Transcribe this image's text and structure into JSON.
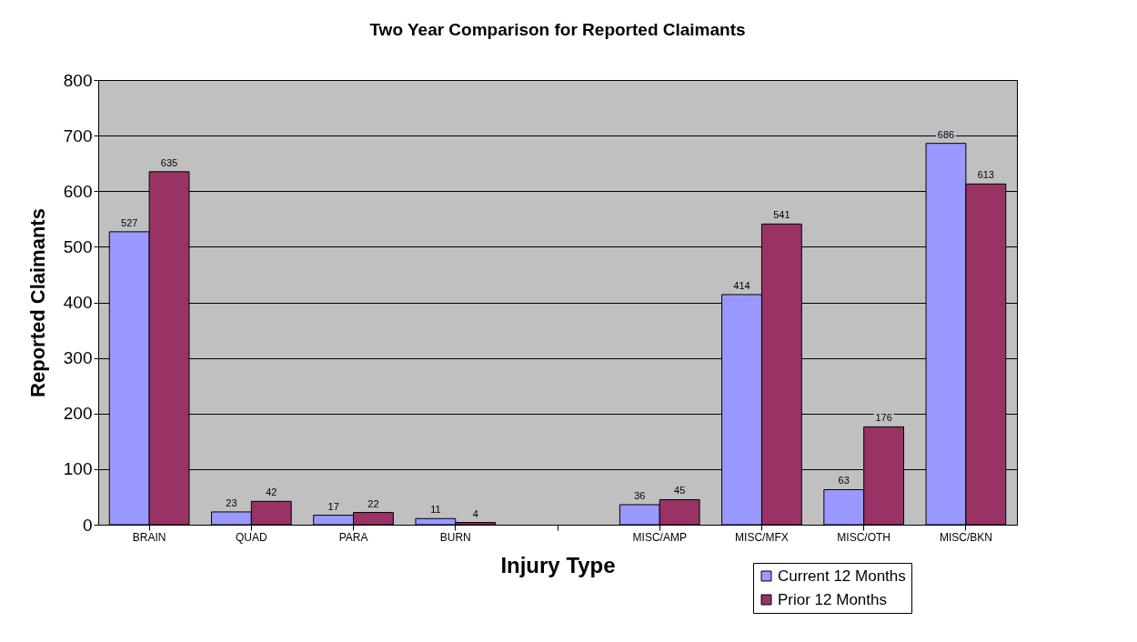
{
  "chart_data": {
    "type": "bar",
    "title": "Two Year Comparison for Reported Claimants",
    "xlabel": "Injury Type",
    "ylabel": "Reported Claimants",
    "categories": [
      "BRAIN",
      "QUAD",
      "PARA",
      "BURN",
      null,
      "MISC/AMP",
      "MISC/MFX",
      "MISC/OTH",
      "MISC/BKN"
    ],
    "series": [
      {
        "name": "Current 12 Months",
        "color": "#9999ff",
        "values": [
          527,
          23,
          17,
          11,
          null,
          36,
          414,
          63,
          686
        ]
      },
      {
        "name": "Prior 12 Months",
        "color": "#993366",
        "values": [
          635,
          42,
          22,
          4,
          null,
          45,
          541,
          176,
          613
        ]
      }
    ],
    "ylim": [
      0,
      800
    ],
    "yticks": [
      0,
      100,
      200,
      300,
      400,
      500,
      600,
      700,
      800
    ],
    "grid": "y",
    "legend": "bottom right",
    "data_labels": true
  }
}
